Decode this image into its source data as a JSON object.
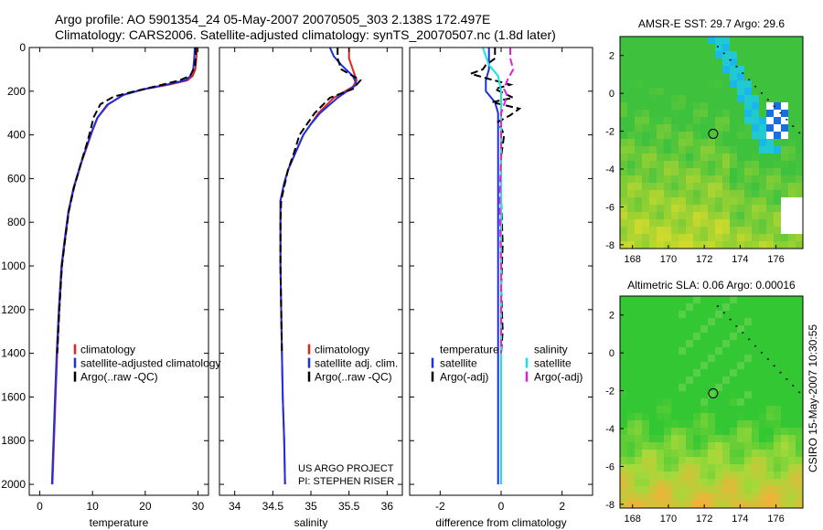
{
  "header": {
    "line1": "Argo profile: AO 5901354_24 05-May-2007 20070505_303 2.138S 172.497E",
    "line2": "Climatology: CARS2006. Satellite-adjusted climatology: synTS_20070507.nc (1.8d later)"
  },
  "side_label": "CSIRO 15-May-2007 10:30:55",
  "credit": {
    "line1": "US ARGO PROJECT",
    "line2": "PI: STEPHEN RISER"
  },
  "colors": {
    "red": "#e8211e",
    "blue": "#1d2fe0",
    "black": "#000000",
    "cyan": "#14e6e6",
    "magenta": "#e020e0"
  },
  "chart_data": [
    {
      "type": "line",
      "xlabel": "temperature",
      "xlim": [
        -2,
        32
      ],
      "ylim": [
        2050,
        0
      ],
      "xticks": [
        0,
        10,
        20,
        30
      ],
      "yticks": [
        0,
        200,
        400,
        600,
        800,
        1000,
        1200,
        1400,
        1600,
        1800,
        2000
      ],
      "legend": {
        "placement": "lower-center",
        "labels": [
          "climatology",
          "satellite-adjusted climatology",
          "Argo(..raw -QC)"
        ]
      },
      "series": [
        {
          "name": "climatology",
          "color": "red",
          "style": "solid",
          "points": [
            [
              29.8,
              0
            ],
            [
              29.7,
              50
            ],
            [
              29.5,
              100
            ],
            [
              29.0,
              130
            ],
            [
              28.0,
              150
            ],
            [
              24.5,
              170
            ],
            [
              20.0,
              190
            ],
            [
              16.0,
              215
            ],
            [
              13.0,
              260
            ],
            [
              11.0,
              320
            ],
            [
              10.0,
              380
            ],
            [
              9.0,
              450
            ],
            [
              8.0,
              520
            ],
            [
              6.5,
              640
            ],
            [
              5.5,
              750
            ],
            [
              4.8,
              880
            ],
            [
              4.2,
              1000
            ],
            [
              3.7,
              1200
            ],
            [
              3.3,
              1400
            ],
            [
              3.0,
              1600
            ],
            [
              2.7,
              1800
            ],
            [
              2.4,
              2000
            ]
          ]
        },
        {
          "name": "satellite-adjusted climatology",
          "color": "blue",
          "style": "solid",
          "points": [
            [
              29.4,
              0
            ],
            [
              29.3,
              50
            ],
            [
              29.1,
              100
            ],
            [
              28.6,
              130
            ],
            [
              27.6,
              150
            ],
            [
              24.0,
              170
            ],
            [
              19.5,
              192
            ],
            [
              15.8,
              218
            ],
            [
              12.8,
              262
            ],
            [
              10.9,
              322
            ],
            [
              9.9,
              382
            ],
            [
              8.9,
              452
            ],
            [
              7.9,
              522
            ],
            [
              6.4,
              642
            ],
            [
              5.4,
              752
            ],
            [
              4.7,
              882
            ],
            [
              4.1,
              1000
            ],
            [
              3.6,
              1200
            ],
            [
              3.2,
              1400
            ],
            [
              2.9,
              1600
            ],
            [
              2.6,
              1800
            ],
            [
              2.3,
              2000
            ]
          ]
        },
        {
          "name": "Argo(..raw -QC)",
          "color": "black",
          "style": "dashed",
          "points": [
            [
              29.6,
              0
            ],
            [
              29.6,
              40
            ],
            [
              29.4,
              90
            ],
            [
              28.5,
              130
            ],
            [
              26.5,
              150
            ],
            [
              22.5,
              175
            ],
            [
              18.0,
              200
            ],
            [
              14.0,
              225
            ],
            [
              11.5,
              260
            ],
            [
              10.2,
              320
            ],
            [
              9.6,
              380
            ],
            [
              8.8,
              450
            ],
            [
              7.9,
              520
            ],
            [
              6.5,
              640
            ],
            [
              5.5,
              750
            ],
            [
              4.8,
              880
            ],
            [
              4.2,
              1000
            ],
            [
              3.7,
              1200
            ],
            [
              3.3,
              1400
            ]
          ]
        }
      ]
    },
    {
      "type": "line",
      "xlabel": "salinity",
      "xlim": [
        33.8,
        36.2
      ],
      "ylim": [
        2050,
        0
      ],
      "xticks": [
        34,
        34.5,
        35,
        35.5,
        36
      ],
      "legend": {
        "placement": "lower-center",
        "labels": [
          "climatology",
          "satellite adj. clim.",
          "Argo(..raw -QC)"
        ]
      },
      "series": [
        {
          "name": "climatology",
          "color": "red",
          "style": "solid",
          "points": [
            [
              35.5,
              0
            ],
            [
              35.5,
              50
            ],
            [
              35.55,
              100
            ],
            [
              35.6,
              150
            ],
            [
              35.55,
              180
            ],
            [
              35.3,
              230
            ],
            [
              35.1,
              300
            ],
            [
              35.0,
              350
            ],
            [
              34.9,
              400
            ],
            [
              34.8,
              480
            ],
            [
              34.7,
              560
            ],
            [
              34.65,
              620
            ],
            [
              34.6,
              700
            ],
            [
              34.6,
              800
            ],
            [
              34.6,
              900
            ],
            [
              34.6,
              1000
            ],
            [
              34.61,
              1200
            ],
            [
              34.62,
              1400
            ],
            [
              34.63,
              1600
            ],
            [
              34.65,
              1800
            ],
            [
              34.66,
              2000
            ]
          ]
        },
        {
          "name": "satellite adj. clim.",
          "color": "blue",
          "style": "solid",
          "points": [
            [
              35.25,
              0
            ],
            [
              35.3,
              40
            ],
            [
              35.4,
              80
            ],
            [
              35.55,
              130
            ],
            [
              35.6,
              170
            ],
            [
              35.35,
              230
            ],
            [
              35.12,
              300
            ],
            [
              35.0,
              350
            ],
            [
              34.9,
              400
            ],
            [
              34.8,
              480
            ],
            [
              34.7,
              560
            ],
            [
              34.65,
              620
            ],
            [
              34.6,
              700
            ],
            [
              34.6,
              800
            ],
            [
              34.6,
              900
            ],
            [
              34.6,
              1000
            ],
            [
              34.61,
              1200
            ],
            [
              34.62,
              1400
            ],
            [
              34.63,
              1600
            ],
            [
              34.65,
              1800
            ],
            [
              34.66,
              2000
            ]
          ]
        },
        {
          "name": "Argo(..raw -QC)",
          "color": "black",
          "style": "dashed",
          "points": [
            [
              35.35,
              0
            ],
            [
              35.35,
              50
            ],
            [
              35.4,
              100
            ],
            [
              35.65,
              150
            ],
            [
              35.55,
              190
            ],
            [
              35.25,
              230
            ],
            [
              35.05,
              300
            ],
            [
              34.95,
              350
            ],
            [
              34.85,
              400
            ],
            [
              34.78,
              480
            ],
            [
              34.7,
              560
            ],
            [
              34.66,
              620
            ],
            [
              34.61,
              700
            ],
            [
              34.6,
              800
            ],
            [
              34.6,
              900
            ],
            [
              34.6,
              1000
            ],
            [
              34.61,
              1200
            ],
            [
              34.62,
              1400
            ]
          ]
        }
      ]
    },
    {
      "type": "line",
      "xlabel": "difference from climatology",
      "xlim": [
        -3.0,
        3.0
      ],
      "ylim": [
        2050,
        0
      ],
      "xticks": [
        -2,
        0,
        2
      ],
      "legend": {
        "placement": "lower-center",
        "columns": [
          {
            "title": "temperature",
            "labels": [
              "satellite",
              "Argo(-adj)"
            ]
          },
          {
            "title": "salinity",
            "labels": [
              "satellite",
              "Argo(-adj)"
            ]
          }
        ]
      },
      "series": [
        {
          "name": "temperature satellite",
          "color": "blue",
          "style": "solid",
          "points": [
            [
              -0.4,
              0
            ],
            [
              -0.4,
              50
            ],
            [
              -0.4,
              100
            ],
            [
              -0.5,
              150
            ],
            [
              -0.5,
              200
            ],
            [
              -0.2,
              250
            ],
            [
              -0.1,
              300
            ],
            [
              -0.1,
              400
            ],
            [
              -0.1,
              500
            ],
            [
              -0.1,
              700
            ],
            [
              -0.1,
              1000
            ],
            [
              -0.1,
              1500
            ],
            [
              -0.1,
              2000
            ]
          ]
        },
        {
          "name": "temperature Argo(-adj)",
          "color": "black",
          "style": "dashed",
          "points": [
            [
              -0.2,
              0
            ],
            [
              -0.2,
              50
            ],
            [
              -0.5,
              80
            ],
            [
              -0.6,
              100
            ],
            [
              -1.0,
              120
            ],
            [
              -0.5,
              140
            ],
            [
              0.3,
              170
            ],
            [
              -0.2,
              190
            ],
            [
              0.4,
              230
            ],
            [
              -0.3,
              250
            ],
            [
              0.6,
              280
            ],
            [
              0.3,
              310
            ],
            [
              -0.1,
              340
            ],
            [
              0.1,
              400
            ],
            [
              0.0,
              500
            ],
            [
              0.0,
              700
            ],
            [
              0.05,
              900
            ],
            [
              0.0,
              1100
            ],
            [
              0.05,
              1300
            ],
            [
              0.0,
              1400
            ]
          ]
        },
        {
          "name": "salinity satellite",
          "color": "cyan",
          "style": "solid",
          "points": [
            [
              -0.6,
              0
            ],
            [
              -0.5,
              40
            ],
            [
              -0.4,
              80
            ],
            [
              -0.1,
              130
            ],
            [
              0.0,
              200
            ],
            [
              0.0,
              300
            ],
            [
              0.0,
              500
            ],
            [
              0.0,
              1000
            ],
            [
              0.0,
              1500
            ],
            [
              0.0,
              2000
            ]
          ]
        },
        {
          "name": "salinity Argo(-adj)",
          "color": "magenta",
          "style": "dashed",
          "points": [
            [
              0.3,
              0
            ],
            [
              0.3,
              50
            ],
            [
              0.4,
              100
            ],
            [
              0.2,
              150
            ],
            [
              0.1,
              190
            ],
            [
              0.2,
              220
            ],
            [
              0.0,
              300
            ],
            [
              0.0,
              500
            ],
            [
              -0.05,
              700
            ],
            [
              0.0,
              1000
            ],
            [
              0.0,
              1400
            ]
          ]
        }
      ]
    },
    {
      "type": "heatmap",
      "title": "AMSR-E SST: 29.7 Argo: 29.6",
      "xticks": [
        168,
        170,
        172,
        174,
        176
      ],
      "yticks": [
        2,
        0,
        -2,
        -4,
        -6,
        -8
      ],
      "xlim": [
        167.3,
        177.5
      ],
      "ylim": [
        -8.2,
        3.0
      ],
      "marker": {
        "lon": 172.497,
        "lat": -2.138
      }
    },
    {
      "type": "heatmap",
      "title": "Altimetric SLA: 0.06 Argo: 0.00016",
      "xticks": [
        168,
        170,
        172,
        174,
        176
      ],
      "yticks": [
        2,
        0,
        -2,
        -4,
        -6,
        -8
      ],
      "xlim": [
        167.3,
        177.5
      ],
      "ylim": [
        -8.2,
        3.0
      ],
      "marker": {
        "lon": 172.497,
        "lat": -2.138
      }
    }
  ]
}
